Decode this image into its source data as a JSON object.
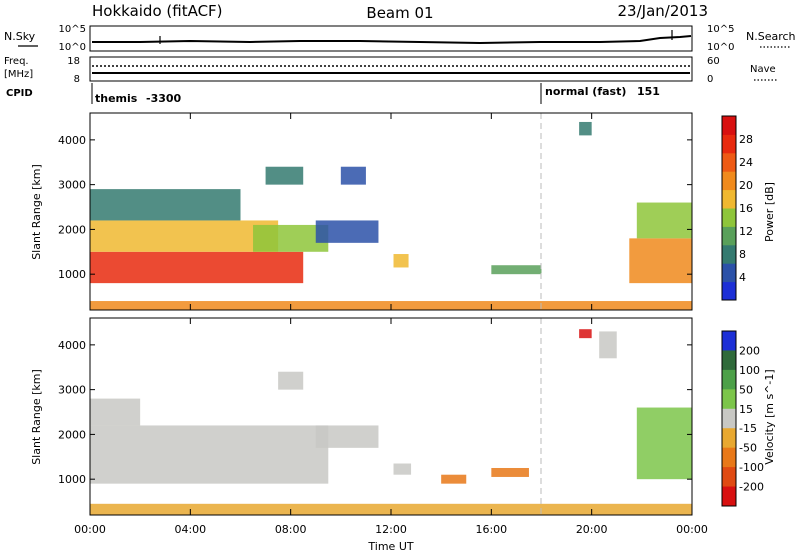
{
  "header": {
    "station": "Hokkaido (fitACF)",
    "beam": "Beam 01",
    "date": "23/Jan/2013"
  },
  "noise_panel": {
    "left_label": "N.Sky",
    "right_label": "N.Search",
    "left_ticks": [
      "10^5",
      "10^0"
    ],
    "right_ticks": [
      "10^5",
      "10^0"
    ]
  },
  "freq_panel": {
    "left_label": "Freq.",
    "left_unit": "[MHz]",
    "right_label": "Nave",
    "left_ticks": [
      "18",
      "8"
    ],
    "right_ticks": [
      "60",
      "0"
    ]
  },
  "cpid_panel": {
    "label": "CPID",
    "modes": [
      {
        "name": "themis",
        "id": "-3300",
        "start": "00:00"
      },
      {
        "name": "normal (fast)",
        "id": "151",
        "start": "18:00"
      }
    ]
  },
  "time_axis": {
    "label": "Time UT",
    "ticks": [
      "00:00",
      "04:00",
      "08:00",
      "12:00",
      "16:00",
      "20:00",
      "00:00"
    ]
  },
  "colors": {
    "power": [
      "#1c2fd6",
      "#2b51a8",
      "#347a70",
      "#59a05a",
      "#8ec53a",
      "#f0b830",
      "#f08a1c",
      "#ee5a14",
      "#e82a0e",
      "#d81010"
    ],
    "velocity": [
      "#1c2fd6",
      "#2f6a3a",
      "#4ca048",
      "#7cc54a",
      "#c8c8c4",
      "#e8a830",
      "#e87818",
      "#e04a12",
      "#d81010"
    ]
  },
  "chart_data": [
    {
      "type": "heatmap",
      "title": "Power",
      "ylabel": "Slant Range [km]",
      "xlabel": "Time UT",
      "ylim": [
        200,
        4600
      ],
      "yticks": [
        1000,
        2000,
        3000,
        4000
      ],
      "colorbar": {
        "label": "Power [dB]",
        "ticks": [
          4,
          8,
          12,
          16,
          20,
          24,
          28
        ]
      },
      "regions": [
        {
          "t0": 0.0,
          "t1": 8.5,
          "r0": 800,
          "r1": 1500,
          "level": 27
        },
        {
          "t0": 0.0,
          "t1": 7.5,
          "r0": 1500,
          "r1": 2200,
          "level": 17
        },
        {
          "t0": 0.0,
          "t1": 6.0,
          "r0": 2200,
          "r1": 2900,
          "level": 8
        },
        {
          "t0": 6.5,
          "t1": 9.5,
          "r0": 1500,
          "r1": 2100,
          "level": 14
        },
        {
          "t0": 9.0,
          "t1": 11.5,
          "r0": 1700,
          "r1": 2200,
          "level": 6
        },
        {
          "t0": 7.0,
          "t1": 8.5,
          "r0": 3000,
          "r1": 3400,
          "level": 8
        },
        {
          "t0": 10.0,
          "t1": 11.0,
          "r0": 3000,
          "r1": 3400,
          "level": 6
        },
        {
          "t0": 12.1,
          "t1": 12.7,
          "r0": 1150,
          "r1": 1450,
          "level": 16
        },
        {
          "t0": 16.0,
          "t1": 18.0,
          "r0": 1000,
          "r1": 1200,
          "level": 10
        },
        {
          "t0": 19.5,
          "t1": 20.0,
          "r0": 4100,
          "r1": 4400,
          "level": 8
        },
        {
          "t0": 21.5,
          "t1": 24.0,
          "r0": 800,
          "r1": 1800,
          "level": 22
        },
        {
          "t0": 21.8,
          "t1": 24.0,
          "r0": 1800,
          "r1": 2600,
          "level": 12
        },
        {
          "t0": 0.0,
          "t1": 24.0,
          "r0": 200,
          "r1": 400,
          "level": 20
        }
      ]
    },
    {
      "type": "heatmap",
      "title": "Velocity",
      "ylabel": "Slant Range [km]",
      "xlabel": "Time UT",
      "ylim": [
        200,
        4600
      ],
      "yticks": [
        1000,
        2000,
        3000,
        4000
      ],
      "colorbar": {
        "label": "Velocity [m s^-1]",
        "ticks": [
          200,
          100,
          50,
          15,
          -15,
          -50,
          -100,
          -200
        ]
      },
      "regions": [
        {
          "t0": 0.0,
          "t1": 9.5,
          "r0": 900,
          "r1": 2200,
          "level": 0
        },
        {
          "t0": 9.0,
          "t1": 11.5,
          "r0": 1700,
          "r1": 2200,
          "level": 0
        },
        {
          "t0": 0.0,
          "t1": 2.0,
          "r0": 2200,
          "r1": 2800,
          "level": 0
        },
        {
          "t0": 7.5,
          "t1": 8.5,
          "r0": 3000,
          "r1": 3400,
          "level": 0
        },
        {
          "t0": 12.1,
          "t1": 12.8,
          "r0": 1100,
          "r1": 1350,
          "level": 0
        },
        {
          "t0": 14.0,
          "t1": 15.0,
          "r0": 900,
          "r1": 1100,
          "level": -60
        },
        {
          "t0": 16.0,
          "t1": 17.5,
          "r0": 1050,
          "r1": 1250,
          "level": -70
        },
        {
          "t0": 19.5,
          "t1": 20.0,
          "r0": 4150,
          "r1": 4350,
          "level": -250
        },
        {
          "t0": 20.3,
          "t1": 21.0,
          "r0": 3700,
          "r1": 4300,
          "level": 0
        },
        {
          "t0": 21.8,
          "t1": 24.0,
          "r0": 1000,
          "r1": 2600,
          "level": 40
        },
        {
          "t0": 0.0,
          "t1": 24.0,
          "r0": 200,
          "r1": 450,
          "level": -40
        }
      ]
    }
  ]
}
